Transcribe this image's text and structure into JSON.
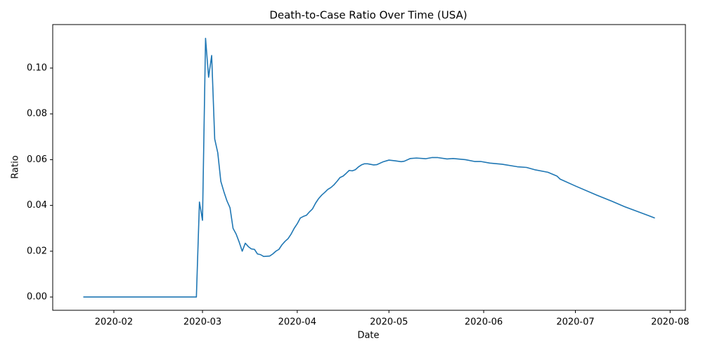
{
  "chart_data": {
    "type": "line",
    "title": "Death-to-Case Ratio Over Time (USA)",
    "x_label": "Date",
    "y_label": "Ratio",
    "series": [
      {
        "name": "Ratio",
        "color": "#1f77b4",
        "x": [
          "2020-01-22",
          "2020-02-28",
          "2020-02-29",
          "2020-03-01",
          "2020-03-02",
          "2020-03-03",
          "2020-03-04",
          "2020-03-05",
          "2020-03-06",
          "2020-03-07",
          "2020-03-08",
          "2020-03-09",
          "2020-03-10",
          "2020-03-11",
          "2020-03-12",
          "2020-03-13",
          "2020-03-14",
          "2020-03-15",
          "2020-03-16",
          "2020-03-17",
          "2020-03-18",
          "2020-03-19",
          "2020-03-20",
          "2020-03-21",
          "2020-03-22",
          "2020-03-23",
          "2020-03-24",
          "2020-03-25",
          "2020-03-26",
          "2020-03-27",
          "2020-03-28",
          "2020-03-29",
          "2020-03-30",
          "2020-03-31",
          "2020-04-01",
          "2020-04-02",
          "2020-04-03",
          "2020-04-04",
          "2020-04-05",
          "2020-04-06",
          "2020-04-07",
          "2020-04-08",
          "2020-04-09",
          "2020-04-10",
          "2020-04-11",
          "2020-04-12",
          "2020-04-13",
          "2020-04-14",
          "2020-04-15",
          "2020-04-16",
          "2020-04-17",
          "2020-04-18",
          "2020-04-19",
          "2020-04-20",
          "2020-04-21",
          "2020-04-22",
          "2020-04-23",
          "2020-04-24",
          "2020-04-26",
          "2020-04-27",
          "2020-04-29",
          "2020-05-01",
          "2020-05-03",
          "2020-05-05",
          "2020-05-06",
          "2020-05-08",
          "2020-05-10",
          "2020-05-13",
          "2020-05-15",
          "2020-05-17",
          "2020-05-20",
          "2020-05-22",
          "2020-05-26",
          "2020-05-29",
          "2020-05-31",
          "2020-06-03",
          "2020-06-07",
          "2020-06-12",
          "2020-06-15",
          "2020-06-18",
          "2020-06-22",
          "2020-06-25",
          "2020-06-26",
          "2020-07-01",
          "2020-07-08",
          "2020-07-13",
          "2020-07-17",
          "2020-07-21",
          "2020-07-25",
          "2020-07-27"
        ],
        "values": [
          0,
          0,
          0.0415,
          0.0335,
          0.113,
          0.096,
          0.1055,
          0.069,
          0.063,
          0.0505,
          0.046,
          0.042,
          0.039,
          0.03,
          0.0275,
          0.024,
          0.02,
          0.0235,
          0.022,
          0.021,
          0.0208,
          0.0188,
          0.0185,
          0.0177,
          0.0178,
          0.0179,
          0.0188,
          0.02,
          0.0208,
          0.0228,
          0.0243,
          0.0255,
          0.0275,
          0.03,
          0.032,
          0.0345,
          0.0352,
          0.0357,
          0.0372,
          0.0385,
          0.041,
          0.043,
          0.0445,
          0.0457,
          0.047,
          0.0478,
          0.049,
          0.0505,
          0.0522,
          0.0528,
          0.054,
          0.0553,
          0.0551,
          0.0556,
          0.0568,
          0.0577,
          0.0582,
          0.0582,
          0.0577,
          0.0578,
          0.059,
          0.0598,
          0.0595,
          0.0591,
          0.0593,
          0.0605,
          0.0607,
          0.0604,
          0.0609,
          0.0609,
          0.0603,
          0.0605,
          0.06,
          0.0592,
          0.0592,
          0.0585,
          0.058,
          0.0569,
          0.0566,
          0.0555,
          0.0545,
          0.0528,
          0.0515,
          0.0485,
          0.0445,
          0.0418,
          0.0395,
          0.0375,
          0.0355,
          0.0345
        ]
      }
    ],
    "xlim": [
      "2020-01-12",
      "2020-08-06"
    ],
    "xticks": [
      "2020-02",
      "2020-03",
      "2020-04",
      "2020-05",
      "2020-06",
      "2020-07",
      "2020-08"
    ],
    "ylim": [
      -0.0058,
      0.119
    ],
    "yticks": [
      {
        "value": 0,
        "label": "0.00"
      },
      {
        "value": 0.02,
        "label": "0.02"
      },
      {
        "value": 0.04,
        "label": "0.04"
      },
      {
        "value": 0.06,
        "label": "0.06"
      },
      {
        "value": 0.08,
        "label": "0.08"
      },
      {
        "value": 0.1,
        "label": "0.10"
      }
    ],
    "grid": false
  }
}
